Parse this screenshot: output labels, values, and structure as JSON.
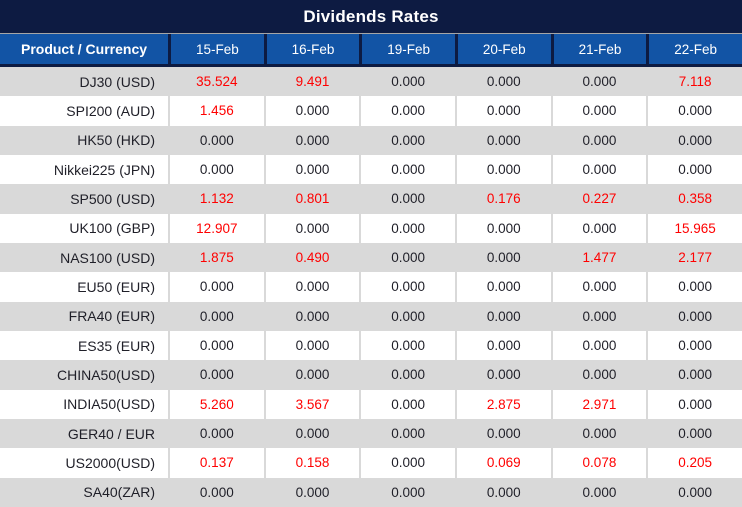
{
  "title": "Dividends Rates",
  "colors": {
    "title_bg": "#0d1b42",
    "header_bg": "#1254a5",
    "row_alt_bg": "#d9d9d9",
    "value_nonzero": "#ff0000",
    "text_dark": "#1f1f28",
    "text_light": "#ffffff"
  },
  "chart_data": {
    "type": "table",
    "title": "Dividends Rates",
    "columns": [
      "Product / Currency",
      "15-Feb",
      "16-Feb",
      "19-Feb",
      "20-Feb",
      "21-Feb",
      "22-Feb"
    ],
    "value_format": "3 decimal places",
    "highlight_rule": "non-zero values rendered in red",
    "rows": [
      {
        "product": "DJ30 (USD)",
        "values": [
          "35.524",
          "9.491",
          "0.000",
          "0.000",
          "0.000",
          "7.118"
        ]
      },
      {
        "product": "SPI200 (AUD)",
        "values": [
          "1.456",
          "0.000",
          "0.000",
          "0.000",
          "0.000",
          "0.000"
        ]
      },
      {
        "product": "HK50 (HKD)",
        "values": [
          "0.000",
          "0.000",
          "0.000",
          "0.000",
          "0.000",
          "0.000"
        ]
      },
      {
        "product": "Nikkei225 (JPN)",
        "values": [
          "0.000",
          "0.000",
          "0.000",
          "0.000",
          "0.000",
          "0.000"
        ]
      },
      {
        "product": "SP500 (USD)",
        "values": [
          "1.132",
          "0.801",
          "0.000",
          "0.176",
          "0.227",
          "0.358"
        ]
      },
      {
        "product": "UK100 (GBP)",
        "values": [
          "12.907",
          "0.000",
          "0.000",
          "0.000",
          "0.000",
          "15.965"
        ]
      },
      {
        "product": "NAS100 (USD)",
        "values": [
          "1.875",
          "0.490",
          "0.000",
          "0.000",
          "1.477",
          "2.177"
        ]
      },
      {
        "product": "EU50 (EUR)",
        "values": [
          "0.000",
          "0.000",
          "0.000",
          "0.000",
          "0.000",
          "0.000"
        ]
      },
      {
        "product": "FRA40 (EUR)",
        "values": [
          "0.000",
          "0.000",
          "0.000",
          "0.000",
          "0.000",
          "0.000"
        ]
      },
      {
        "product": "ES35 (EUR)",
        "values": [
          "0.000",
          "0.000",
          "0.000",
          "0.000",
          "0.000",
          "0.000"
        ]
      },
      {
        "product": "CHINA50(USD)",
        "values": [
          "0.000",
          "0.000",
          "0.000",
          "0.000",
          "0.000",
          "0.000"
        ]
      },
      {
        "product": "INDIA50(USD)",
        "values": [
          "5.260",
          "3.567",
          "0.000",
          "2.875",
          "2.971",
          "0.000"
        ]
      },
      {
        "product": "GER40 / EUR",
        "values": [
          "0.000",
          "0.000",
          "0.000",
          "0.000",
          "0.000",
          "0.000"
        ]
      },
      {
        "product": "US2000(USD)",
        "values": [
          "0.137",
          "0.158",
          "0.000",
          "0.069",
          "0.078",
          "0.205"
        ]
      },
      {
        "product": "SA40(ZAR)",
        "values": [
          "0.000",
          "0.000",
          "0.000",
          "0.000",
          "0.000",
          "0.000"
        ]
      }
    ]
  }
}
